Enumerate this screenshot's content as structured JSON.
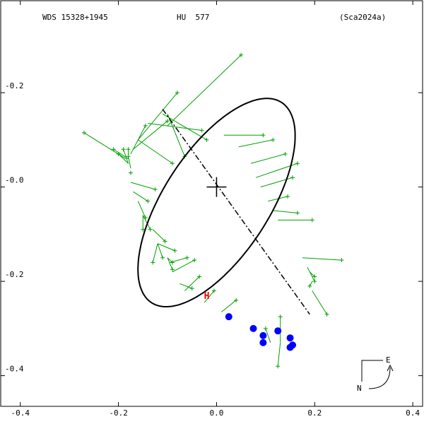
{
  "header": {
    "wds": "WDS 15328+1945",
    "name": "HU  577",
    "ref": "(Sca2024a)"
  },
  "compass": {
    "east": "E",
    "north": "N"
  },
  "colors": {
    "frame": "#000000",
    "orbit": "#000000",
    "observation": "#00a000",
    "recent": "#0000ff",
    "herschel_marker": "#ff0000"
  },
  "chart_data": {
    "type": "scatter",
    "title": "",
    "xlabel": "",
    "ylabel": "",
    "xlim": [
      0.44,
      -0.42
    ],
    "ylim": [
      -0.465,
      0.395
    ],
    "x_ticks": [
      {
        "value": 0.4,
        "label": "-0.4"
      },
      {
        "value": 0.2,
        "label": "-0.2"
      },
      {
        "value": 0.0,
        "label": "0.0"
      },
      {
        "value": -0.2,
        "label": "0.2"
      },
      {
        "value": -0.4,
        "label": "0.4"
      }
    ],
    "y_ticks": [
      {
        "value": 0.2,
        "label": "-0.2"
      },
      {
        "value": 0.0,
        "label": "-0.0"
      },
      {
        "value": -0.2,
        "label": "-0.2"
      },
      {
        "value": -0.4,
        "label": "-0.4"
      }
    ],
    "primary_mark": {
      "x": 0.0,
      "y": 0.0
    },
    "orbit_ellipse": {
      "center": [
        0.0,
        -0.033
      ],
      "semi_major": 0.2503,
      "semi_minor": 0.1085,
      "major_axis_angle_deg": -58.5
    },
    "line_of_nodes": [
      [
        0.11,
        0.165
      ],
      [
        -0.19,
        -0.27
      ]
    ],
    "observations": [
      {
        "obs": [
          -0.05,
          0.28
        ],
        "orb": [
          0.1,
          0.13
        ]
      },
      {
        "obs": [
          0.27,
          0.115
        ],
        "orb": [
          0.185,
          0.06
        ]
      },
      {
        "obs": [
          0.18,
          0.08
        ],
        "orb": [
          0.18,
          0.06
        ]
      },
      {
        "obs": [
          0.2,
          0.07
        ],
        "orb": [
          0.18,
          0.05
        ]
      },
      {
        "obs": [
          0.21,
          0.08
        ],
        "orb": [
          0.18,
          0.06
        ]
      },
      {
        "obs": [
          0.145,
          0.13
        ],
        "orb": [
          0.175,
          0.07
        ]
      },
      {
        "obs": [
          0.1,
          0.14
        ],
        "orb": [
          0.17,
          0.08
        ]
      },
      {
        "obs": [
          0.08,
          0.2
        ],
        "orb": [
          0.16,
          0.1
        ]
      },
      {
        "obs": [
          0.09,
          0.05
        ],
        "orb": [
          0.16,
          0.1
        ]
      },
      {
        "obs": [
          0.03,
          0.12
        ],
        "orb": [
          0.14,
          0.135
        ]
      },
      {
        "obs": [
          0.02,
          0.1
        ],
        "orb": [
          0.11,
          0.155
        ]
      },
      {
        "obs": [
          0.065,
          0.065
        ],
        "orb": [
          0.1,
          0.155
        ]
      },
      {
        "obs": [
          0.19,
          0.08
        ],
        "orb": [
          0.18,
          0.05
        ]
      },
      {
        "obs": [
          0.175,
          0.03
        ],
        "orb": [
          0.175,
          0.03
        ]
      },
      {
        "obs": [
          0.18,
          0.065
        ],
        "orb": [
          0.175,
          0.04
        ]
      },
      {
        "obs": [
          -0.095,
          0.11
        ],
        "orb": [
          -0.015,
          0.11
        ]
      },
      {
        "obs": [
          -0.115,
          0.1
        ],
        "orb": [
          -0.045,
          0.085
        ]
      },
      {
        "obs": [
          -0.14,
          0.07
        ],
        "orb": [
          -0.07,
          0.05
        ]
      },
      {
        "obs": [
          -0.165,
          0.05
        ],
        "orb": [
          -0.08,
          0.02
        ]
      },
      {
        "obs": [
          -0.155,
          0.02
        ],
        "orb": [
          -0.09,
          0.0
        ]
      },
      {
        "obs": [
          -0.145,
          -0.02
        ],
        "orb": [
          -0.105,
          -0.03
        ]
      },
      {
        "obs": [
          -0.165,
          -0.055
        ],
        "orb": [
          -0.115,
          -0.05
        ]
      },
      {
        "obs": [
          -0.195,
          -0.07
        ],
        "orb": [
          -0.125,
          -0.07
        ]
      },
      {
        "obs": [
          -0.255,
          -0.155
        ],
        "orb": [
          -0.175,
          -0.15
        ]
      },
      {
        "obs": [
          -0.2,
          -0.2
        ],
        "orb": [
          -0.185,
          -0.17
        ]
      },
      {
        "obs": [
          -0.2,
          -0.19
        ],
        "orb": [
          -0.19,
          -0.18
        ]
      },
      {
        "obs": [
          -0.19,
          -0.21
        ],
        "orb": [
          -0.195,
          -0.2
        ]
      },
      {
        "obs": [
          -0.225,
          -0.27
        ],
        "orb": [
          -0.195,
          -0.22
        ]
      },
      {
        "obs": [
          0.125,
          -0.005
        ],
        "orb": [
          0.175,
          0.01
        ]
      },
      {
        "obs": [
          0.14,
          -0.03
        ],
        "orb": [
          0.17,
          -0.01
        ]
      },
      {
        "obs": [
          0.145,
          -0.065
        ],
        "orb": [
          0.16,
          -0.03
        ]
      },
      {
        "obs": [
          0.135,
          -0.09
        ],
        "orb": [
          0.15,
          -0.06
        ]
      },
      {
        "obs": [
          0.15,
          -0.09
        ],
        "orb": [
          0.15,
          -0.06
        ]
      },
      {
        "obs": [
          0.105,
          -0.115
        ],
        "orb": [
          0.13,
          -0.09
        ]
      },
      {
        "obs": [
          0.13,
          -0.16
        ],
        "orb": [
          0.12,
          -0.12
        ]
      },
      {
        "obs": [
          0.11,
          -0.15
        ],
        "orb": [
          0.12,
          -0.12
        ]
      },
      {
        "obs": [
          0.085,
          -0.135
        ],
        "orb": [
          0.12,
          -0.12
        ]
      },
      {
        "obs": [
          0.09,
          -0.16
        ],
        "orb": [
          0.1,
          -0.15
        ]
      },
      {
        "obs": [
          0.09,
          -0.175
        ],
        "orb": [
          0.1,
          -0.15
        ]
      },
      {
        "obs": [
          0.06,
          -0.15
        ],
        "orb": [
          0.095,
          -0.16
        ]
      },
      {
        "obs": [
          0.045,
          -0.155
        ],
        "orb": [
          0.09,
          -0.18
        ]
      },
      {
        "obs": [
          0.035,
          -0.19
        ],
        "orb": [
          0.065,
          -0.22
        ]
      },
      {
        "obs": [
          0.05,
          -0.215
        ],
        "orb": [
          0.075,
          -0.205
        ]
      },
      {
        "obs": [
          0.005,
          -0.22
        ],
        "orb": [
          0.025,
          -0.245
        ]
      },
      {
        "obs": [
          -0.04,
          -0.24
        ],
        "orb": [
          -0.01,
          -0.265
        ]
      },
      {
        "obs": [
          -0.1,
          -0.3
        ],
        "orb": [
          -0.11,
          -0.33
        ]
      },
      {
        "obs": [
          -0.125,
          -0.38
        ],
        "orb": [
          -0.13,
          -0.33
        ]
      },
      {
        "obs": [
          -0.13,
          -0.275
        ],
        "orb": [
          -0.13,
          -0.33
        ]
      }
    ],
    "recent_points": [
      [
        -0.025,
        -0.275
      ],
      [
        -0.075,
        -0.3
      ],
      [
        -0.095,
        -0.315
      ],
      [
        -0.095,
        -0.33
      ],
      [
        -0.125,
        -0.305
      ],
      [
        -0.15,
        -0.32
      ],
      [
        -0.155,
        -0.335
      ],
      [
        -0.15,
        -0.34
      ]
    ],
    "herschel_point": {
      "x": 0.02,
      "y": -0.23,
      "label": "H"
    }
  }
}
